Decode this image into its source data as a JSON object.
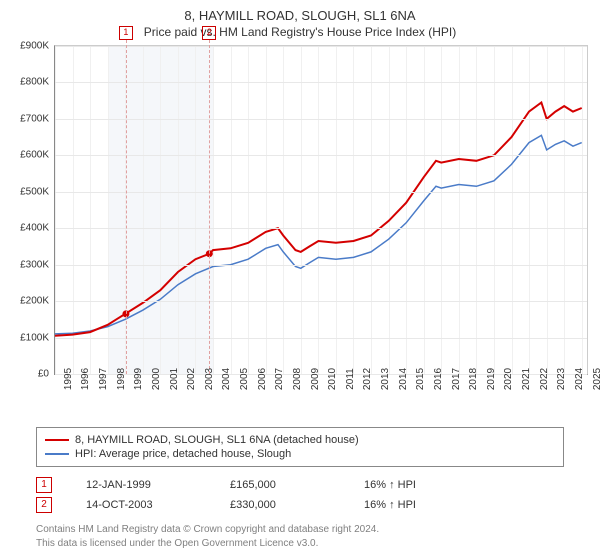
{
  "title": "8, HAYMILL ROAD, SLOUGH, SL1 6NA",
  "subtitle": "Price paid vs. HM Land Registry's House Price Index (HPI)",
  "y_axis": {
    "min": 0,
    "max": 900000,
    "ticks": [
      0,
      100000,
      200000,
      300000,
      400000,
      500000,
      600000,
      700000,
      800000,
      900000
    ],
    "labels": [
      "£0",
      "£100K",
      "£200K",
      "£300K",
      "£400K",
      "£500K",
      "£600K",
      "£700K",
      "£800K",
      "£900K"
    ]
  },
  "x_axis": {
    "years": [
      1995,
      1996,
      1997,
      1998,
      1999,
      2000,
      2001,
      2002,
      2003,
      2004,
      2005,
      2006,
      2007,
      2008,
      2009,
      2010,
      2011,
      2012,
      2013,
      2014,
      2015,
      2016,
      2017,
      2018,
      2019,
      2020,
      2021,
      2022,
      2023,
      2024,
      2025
    ],
    "banded": [
      1998,
      1999,
      2000,
      2001,
      2002,
      2003
    ]
  },
  "series": {
    "primary": {
      "label": "8, HAYMILL ROAD, SLOUGH, SL1 6NA (detached house)",
      "color": "#d40000",
      "width": 2,
      "values": [
        [
          1995,
          105000
        ],
        [
          1996,
          108000
        ],
        [
          1997,
          115000
        ],
        [
          1998,
          135000
        ],
        [
          1998.5,
          150000
        ],
        [
          1999,
          165000
        ],
        [
          2000,
          195000
        ],
        [
          2001,
          230000
        ],
        [
          2002,
          280000
        ],
        [
          2003,
          315000
        ],
        [
          2003.8,
          330000
        ],
        [
          2004,
          340000
        ],
        [
          2005,
          345000
        ],
        [
          2006,
          360000
        ],
        [
          2007,
          390000
        ],
        [
          2007.7,
          400000
        ],
        [
          2008,
          380000
        ],
        [
          2008.7,
          340000
        ],
        [
          2009,
          335000
        ],
        [
          2009.5,
          350000
        ],
        [
          2010,
          365000
        ],
        [
          2011,
          360000
        ],
        [
          2012,
          365000
        ],
        [
          2013,
          380000
        ],
        [
          2014,
          420000
        ],
        [
          2015,
          470000
        ],
        [
          2016,
          540000
        ],
        [
          2016.7,
          585000
        ],
        [
          2017,
          580000
        ],
        [
          2018,
          590000
        ],
        [
          2019,
          585000
        ],
        [
          2020,
          600000
        ],
        [
          2021,
          650000
        ],
        [
          2022,
          720000
        ],
        [
          2022.7,
          745000
        ],
        [
          2023,
          700000
        ],
        [
          2023.5,
          720000
        ],
        [
          2024,
          735000
        ],
        [
          2024.5,
          720000
        ],
        [
          2025,
          730000
        ]
      ]
    },
    "secondary": {
      "label": "HPI: Average price, detached house, Slough",
      "color": "#4a7bc8",
      "width": 1.5,
      "values": [
        [
          1995,
          110000
        ],
        [
          1996,
          112000
        ],
        [
          1997,
          118000
        ],
        [
          1998,
          130000
        ],
        [
          1999,
          150000
        ],
        [
          2000,
          175000
        ],
        [
          2001,
          205000
        ],
        [
          2002,
          245000
        ],
        [
          2003,
          275000
        ],
        [
          2004,
          295000
        ],
        [
          2005,
          300000
        ],
        [
          2006,
          315000
        ],
        [
          2007,
          345000
        ],
        [
          2007.7,
          355000
        ],
        [
          2008,
          335000
        ],
        [
          2008.7,
          295000
        ],
        [
          2009,
          290000
        ],
        [
          2009.5,
          305000
        ],
        [
          2010,
          320000
        ],
        [
          2011,
          315000
        ],
        [
          2012,
          320000
        ],
        [
          2013,
          335000
        ],
        [
          2014,
          370000
        ],
        [
          2015,
          415000
        ],
        [
          2016,
          475000
        ],
        [
          2016.7,
          515000
        ],
        [
          2017,
          510000
        ],
        [
          2018,
          520000
        ],
        [
          2019,
          515000
        ],
        [
          2020,
          530000
        ],
        [
          2021,
          575000
        ],
        [
          2022,
          635000
        ],
        [
          2022.7,
          655000
        ],
        [
          2023,
          615000
        ],
        [
          2023.5,
          630000
        ],
        [
          2024,
          640000
        ],
        [
          2024.5,
          625000
        ],
        [
          2025,
          635000
        ]
      ]
    }
  },
  "sales": [
    {
      "num": "1",
      "year": 1999.04,
      "price": 165000,
      "date": "12-JAN-1999",
      "price_fmt": "£165,000",
      "delta": "16% ↑ HPI"
    },
    {
      "num": "2",
      "year": 2003.79,
      "price": 330000,
      "date": "14-OCT-2003",
      "price_fmt": "£330,000",
      "delta": "16% ↑ HPI"
    }
  ],
  "footer": {
    "line1": "Contains HM Land Registry data © Crown copyright and database right 2024.",
    "line2": "This data is licensed under the Open Government Licence v3.0."
  }
}
